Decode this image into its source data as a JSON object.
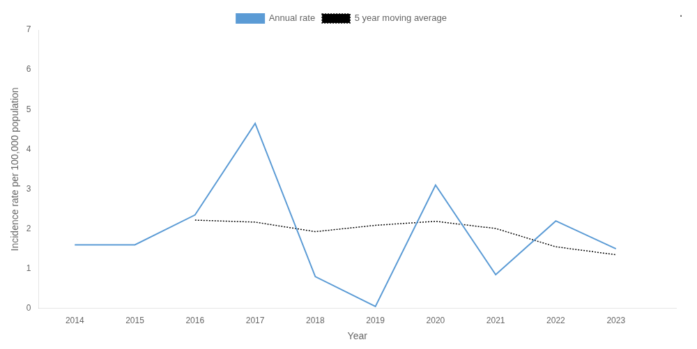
{
  "chart_data": {
    "type": "line",
    "xlabel": "Year",
    "ylabel": "Incidence rate per 100,000 population",
    "annotations": [
      "."
    ],
    "x": [
      2014,
      2015,
      2016,
      2017,
      2018,
      2019,
      2020,
      2021,
      2022,
      2023
    ],
    "series": [
      {
        "name": "Annual rate",
        "color": "#5B9BD5",
        "line_style": "solid",
        "values": [
          1.6,
          1.6,
          2.35,
          4.65,
          0.8,
          0.05,
          3.1,
          0.85,
          2.2,
          1.5
        ]
      },
      {
        "name": "5 year moving average",
        "color": "#000000",
        "line_style": "dotted",
        "values": [
          null,
          null,
          2.22,
          2.17,
          1.93,
          2.09,
          2.19,
          2.01,
          1.55,
          1.35
        ]
      }
    ],
    "xlim": [
      2013.4,
      2024.0
    ],
    "xticks": [
      2014,
      2015,
      2016,
      2017,
      2018,
      2019,
      2020,
      2021,
      2022,
      2023
    ],
    "ylim": [
      0,
      7
    ],
    "yticks": [
      0,
      1,
      2,
      3,
      4,
      5,
      6,
      7
    ],
    "grid": false,
    "legend": "top"
  }
}
